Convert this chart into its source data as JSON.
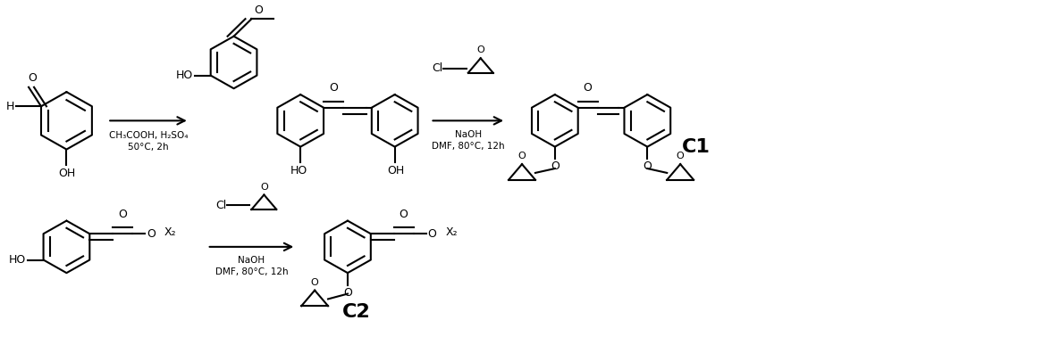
{
  "background_color": "#ffffff",
  "line_color": "#000000",
  "line_width": 1.5,
  "arrow_color": "#000000",
  "text_color": "#000000",
  "fig_width": 11.86,
  "fig_height": 3.87,
  "reaction1_conditions_line1": "CH₃COOH, H₂SO₄",
  "reaction1_conditions_line2": "50°C, 2h",
  "reaction2_conditions_line1": "NaOH",
  "reaction2_conditions_line2": "DMF, 80°C, 12h",
  "reaction3_conditions_line1": "NaOH",
  "reaction3_conditions_line2": "DMF, 80°C, 12h",
  "label_C1": "C1",
  "label_C2": "C2"
}
